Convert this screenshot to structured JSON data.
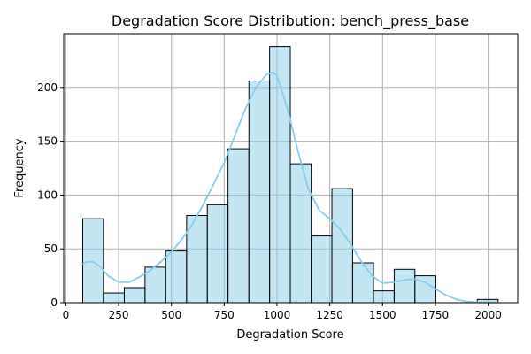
{
  "chart_data": {
    "type": "bar",
    "title": "Degradation Score Distribution: bench_press_base",
    "xlabel": "Degradation Score",
    "ylabel": "Frequency",
    "xlim": [
      -10,
      2140
    ],
    "ylim": [
      0,
      250
    ],
    "grid": true,
    "xticks": [
      0,
      250,
      500,
      750,
      1000,
      1250,
      1500,
      1750,
      2000
    ],
    "yticks": [
      0,
      50,
      100,
      150,
      200
    ],
    "bar_color": "#87ceeb",
    "edge_color": "#000000",
    "kde_color": "#87ceeb",
    "bins": [
      {
        "x0": 80,
        "x1": 178,
        "count": 78
      },
      {
        "x0": 178,
        "x1": 277,
        "count": 9
      },
      {
        "x0": 277,
        "x1": 375,
        "count": 14
      },
      {
        "x0": 375,
        "x1": 473,
        "count": 33
      },
      {
        "x0": 473,
        "x1": 572,
        "count": 48
      },
      {
        "x0": 572,
        "x1": 670,
        "count": 81
      },
      {
        "x0": 670,
        "x1": 768,
        "count": 91
      },
      {
        "x0": 768,
        "x1": 867,
        "count": 143
      },
      {
        "x0": 867,
        "x1": 965,
        "count": 206
      },
      {
        "x0": 965,
        "x1": 1063,
        "count": 238
      },
      {
        "x0": 1063,
        "x1": 1162,
        "count": 129
      },
      {
        "x0": 1162,
        "x1": 1260,
        "count": 62
      },
      {
        "x0": 1260,
        "x1": 1358,
        "count": 106
      },
      {
        "x0": 1358,
        "x1": 1457,
        "count": 37
      },
      {
        "x0": 1457,
        "x1": 1555,
        "count": 11
      },
      {
        "x0": 1555,
        "x1": 1653,
        "count": 31
      },
      {
        "x0": 1653,
        "x1": 1752,
        "count": 25
      },
      {
        "x0": 1752,
        "x1": 1850,
        "count": 0
      },
      {
        "x0": 1850,
        "x1": 1948,
        "count": 0
      },
      {
        "x0": 1948,
        "x1": 2047,
        "count": 3
      }
    ],
    "kde": {
      "x": [
        80,
        100,
        130,
        160,
        200,
        250,
        300,
        350,
        400,
        450,
        500,
        550,
        600,
        650,
        700,
        750,
        800,
        850,
        900,
        950,
        980,
        1000,
        1050,
        1100,
        1150,
        1200,
        1250,
        1300,
        1350,
        1400,
        1450,
        1500,
        1550,
        1600,
        1650,
        1700,
        1750,
        1800,
        1850,
        1900,
        1950,
        2000,
        2050
      ],
      "y": [
        36,
        38,
        38,
        34,
        25,
        19,
        19,
        24,
        30,
        38,
        47,
        59,
        73,
        91,
        110,
        130,
        155,
        180,
        200,
        212,
        214,
        211,
        180,
        140,
        105,
        86,
        78,
        68,
        54,
        38,
        25,
        18,
        19,
        21,
        22,
        19,
        13,
        7,
        3,
        1,
        0.5,
        0.3,
        0.2
      ]
    }
  }
}
